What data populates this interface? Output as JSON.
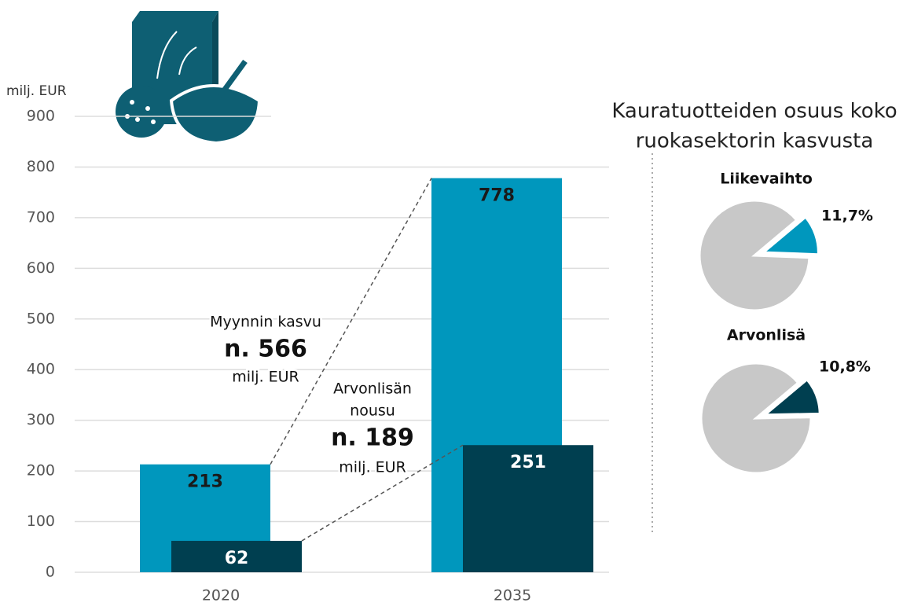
{
  "chart_data": [
    {
      "type": "bar",
      "y_label": "milj. EUR",
      "categories": [
        "2020",
        "2035"
      ],
      "series": [
        {
          "color": "#0097bd",
          "label_color": "#1a1a1a",
          "values": [
            213,
            778
          ]
        },
        {
          "color": "#003f50",
          "label_color": "#ffffff",
          "values": [
            62,
            251
          ]
        }
      ],
      "ylim": [
        0,
        900
      ],
      "yticks": [
        0,
        100,
        200,
        300,
        400,
        500,
        600,
        700,
        800,
        900
      ],
      "grid": true,
      "annotations": [
        {
          "lines": [
            "Myynnin kasvu",
            "n. 566",
            "milj. EUR"
          ]
        },
        {
          "lines": [
            "Arvonlisän",
            "nousu",
            "n. 189",
            "milj. EUR"
          ]
        }
      ]
    },
    {
      "type": "pie",
      "title": "Liikevaihto",
      "values": [
        11.7,
        88.3
      ],
      "value_labels": [
        "11,7%",
        null
      ],
      "colors": [
        "#0097bd",
        "#c8c8c8"
      ]
    },
    {
      "type": "pie",
      "title": "Arvonlisä",
      "values": [
        10.8,
        89.2
      ],
      "value_labels": [
        "10,8%",
        null
      ],
      "colors": [
        "#003f50",
        "#c8c8c8"
      ]
    }
  ],
  "panel_title": [
    "Kauratuotteiden osuus koko",
    "ruokasektorin kasvusta"
  ]
}
